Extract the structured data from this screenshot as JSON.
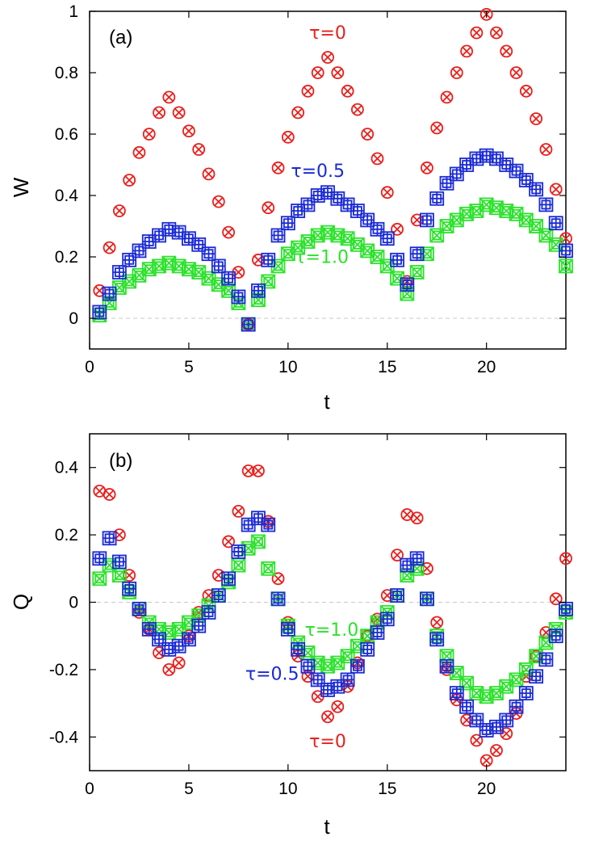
{
  "colors": {
    "tau0": "#e8201c",
    "tau05": "#1a2ad6",
    "tau10": "#2be22b",
    "zero_line": "#c8c8c8"
  },
  "chart_data": [
    {
      "type": "scatter",
      "panel_label": "(a)",
      "xlabel": "t",
      "ylabel": "W",
      "xlim": [
        0,
        24
      ],
      "ylim": [
        -0.1,
        1
      ],
      "xticks": [
        "0",
        "5",
        "10",
        "15",
        "20"
      ],
      "yticks": [
        "0",
        "0.2",
        "0.4",
        "0.6",
        "0.8",
        "1"
      ],
      "ytick_values": [
        0,
        0.2,
        0.4,
        0.6,
        0.8,
        1
      ],
      "annotations": [
        {
          "text": "τ=0",
          "series": "tau0",
          "x": 12,
          "y": 0.91
        },
        {
          "text": "τ=0.5",
          "series": "tau05",
          "x": 11.5,
          "y": 0.46
        },
        {
          "text": "τ=1.0",
          "series": "tau10",
          "x": 11.7,
          "y": 0.18
        }
      ],
      "grid": false,
      "series": [
        {
          "key": "tau0",
          "marker": "circle-x",
          "x": [
            0.5,
            1,
            1.5,
            2,
            2.5,
            3,
            3.5,
            4,
            4.5,
            5,
            5.5,
            6,
            6.5,
            7,
            7.5,
            8,
            8.5,
            9,
            9.5,
            10,
            10.5,
            11,
            11.5,
            12,
            12.5,
            13,
            13.5,
            14,
            14.5,
            15,
            15.5,
            16,
            16.5,
            17,
            17.5,
            18,
            18.5,
            19,
            19.5,
            20,
            20.5,
            21,
            21.5,
            22,
            22.5,
            23,
            23.5,
            24
          ],
          "y": [
            0.09,
            0.23,
            0.35,
            0.45,
            0.54,
            0.6,
            0.67,
            0.72,
            0.67,
            0.61,
            0.55,
            0.47,
            0.38,
            0.28,
            0.15,
            -0.02,
            0.19,
            0.36,
            0.49,
            0.59,
            0.67,
            0.74,
            0.8,
            0.85,
            0.8,
            0.74,
            0.68,
            0.6,
            0.52,
            0.41,
            0.29,
            0.12,
            0.32,
            0.49,
            0.62,
            0.72,
            0.8,
            0.87,
            0.93,
            0.99,
            0.93,
            0.87,
            0.8,
            0.74,
            0.65,
            0.55,
            0.42,
            0.26
          ]
        },
        {
          "key": "tau05",
          "marker": "square-plus",
          "x": [
            0.5,
            1,
            1.5,
            2,
            2.5,
            3,
            3.5,
            4,
            4.5,
            5,
            5.5,
            6,
            6.5,
            7,
            7.5,
            8,
            8.5,
            9,
            9.5,
            10,
            10.5,
            11,
            11.5,
            12,
            12.5,
            13,
            13.5,
            14,
            14.5,
            15,
            15.5,
            16,
            16.5,
            17,
            17.5,
            18,
            18.5,
            19,
            19.5,
            20,
            20.5,
            21,
            21.5,
            22,
            22.5,
            23,
            23.5,
            24
          ],
          "y": [
            0.02,
            0.08,
            0.15,
            0.19,
            0.22,
            0.25,
            0.27,
            0.29,
            0.28,
            0.26,
            0.24,
            0.21,
            0.17,
            0.13,
            0.07,
            -0.02,
            0.09,
            0.19,
            0.27,
            0.31,
            0.35,
            0.37,
            0.4,
            0.41,
            0.39,
            0.37,
            0.35,
            0.32,
            0.29,
            0.26,
            0.19,
            0.11,
            0.21,
            0.32,
            0.39,
            0.44,
            0.47,
            0.5,
            0.52,
            0.53,
            0.52,
            0.5,
            0.48,
            0.45,
            0.42,
            0.37,
            0.31,
            0.22
          ]
        },
        {
          "key": "tau10",
          "marker": "square-x",
          "x": [
            0.5,
            1,
            1.5,
            2,
            2.5,
            3,
            3.5,
            4,
            4.5,
            5,
            5.5,
            6,
            6.5,
            7,
            7.5,
            8,
            8.5,
            9,
            9.5,
            10,
            10.5,
            11,
            11.5,
            12,
            12.5,
            13,
            13.5,
            14,
            14.5,
            15,
            15.5,
            16,
            16.5,
            17,
            17.5,
            18,
            18.5,
            19,
            19.5,
            20,
            20.5,
            21,
            21.5,
            22,
            22.5,
            23,
            23.5,
            24
          ],
          "y": [
            0.01,
            0.05,
            0.1,
            0.12,
            0.14,
            0.16,
            0.17,
            0.18,
            0.17,
            0.16,
            0.15,
            0.13,
            0.11,
            0.09,
            0.05,
            -0.02,
            0.06,
            0.12,
            0.17,
            0.21,
            0.23,
            0.25,
            0.27,
            0.28,
            0.27,
            0.26,
            0.24,
            0.22,
            0.2,
            0.17,
            0.13,
            0.08,
            0.15,
            0.21,
            0.27,
            0.3,
            0.32,
            0.34,
            0.35,
            0.37,
            0.36,
            0.35,
            0.34,
            0.32,
            0.3,
            0.27,
            0.24,
            0.17
          ]
        }
      ]
    },
    {
      "type": "scatter",
      "panel_label": "(b)",
      "xlabel": "t",
      "ylabel": "Q",
      "xlim": [
        0,
        24
      ],
      "ylim": [
        -0.5,
        0.5
      ],
      "xticks": [
        "0",
        "5",
        "10",
        "15",
        "20"
      ],
      "yticks": [
        "-0.4",
        "-0.2",
        "0",
        "0.2",
        "0.4"
      ],
      "ytick_values": [
        -0.4,
        -0.2,
        0,
        0.2,
        0.4
      ],
      "annotations": [
        {
          "text": "τ=1.0",
          "series": "tau10",
          "x": 12.2,
          "y": -0.1
        },
        {
          "text": "τ=0.5",
          "series": "tau05",
          "x": 9.2,
          "y": -0.23
        },
        {
          "text": "τ=0",
          "series": "tau0",
          "x": 12,
          "y": -0.43
        }
      ],
      "grid": false,
      "series": [
        {
          "key": "tau0",
          "marker": "circle-x",
          "x": [
            0.5,
            1,
            1.5,
            2,
            2.5,
            3,
            3.5,
            4,
            4.5,
            5,
            5.5,
            6,
            6.5,
            7,
            7.5,
            8,
            8.5,
            9,
            9.5,
            10,
            10.5,
            11,
            11.5,
            12,
            12.5,
            13,
            13.5,
            14,
            14.5,
            15,
            15.5,
            16,
            16.5,
            17,
            17.5,
            18,
            18.5,
            19,
            19.5,
            20,
            20.5,
            21,
            21.5,
            22,
            22.5,
            23,
            23.5,
            24
          ],
          "y": [
            0.33,
            0.32,
            0.2,
            0.08,
            -0.03,
            -0.08,
            -0.15,
            -0.2,
            -0.18,
            -0.1,
            -0.03,
            0.02,
            0.08,
            0.18,
            0.27,
            0.39,
            0.39,
            0.24,
            0.07,
            -0.06,
            -0.16,
            -0.22,
            -0.28,
            -0.34,
            -0.31,
            -0.25,
            -0.18,
            -0.1,
            -0.05,
            0.02,
            0.14,
            0.26,
            0.25,
            0.1,
            -0.06,
            -0.2,
            -0.29,
            -0.35,
            -0.41,
            -0.47,
            -0.44,
            -0.39,
            -0.33,
            -0.22,
            -0.16,
            -0.09,
            0.01,
            0.13
          ]
        },
        {
          "key": "tau05",
          "marker": "square-plus",
          "x": [
            0.5,
            1,
            1.5,
            2,
            2.5,
            3,
            3.5,
            4,
            4.5,
            5,
            5.5,
            6,
            6.5,
            7,
            7.5,
            8,
            8.5,
            9,
            9.5,
            10,
            10.5,
            11,
            11.5,
            12,
            12.5,
            13,
            13.5,
            14,
            14.5,
            15,
            15.5,
            16,
            16.5,
            17,
            17.5,
            18,
            18.5,
            19,
            19.5,
            20,
            20.5,
            21,
            21.5,
            22,
            22.5,
            23,
            23.5,
            24
          ],
          "y": [
            0.13,
            0.19,
            0.12,
            0.04,
            -0.02,
            -0.08,
            -0.11,
            -0.14,
            -0.13,
            -0.11,
            -0.07,
            -0.03,
            0.02,
            0.07,
            0.15,
            0.23,
            0.25,
            0.23,
            0.01,
            -0.08,
            -0.14,
            -0.19,
            -0.23,
            -0.26,
            -0.25,
            -0.23,
            -0.19,
            -0.14,
            -0.09,
            -0.05,
            0.02,
            0.11,
            0.13,
            0.01,
            -0.11,
            -0.19,
            -0.27,
            -0.31,
            -0.35,
            -0.38,
            -0.37,
            -0.35,
            -0.31,
            -0.27,
            -0.22,
            -0.17,
            -0.1,
            -0.02
          ]
        },
        {
          "key": "tau10",
          "marker": "square-x",
          "x": [
            0.5,
            1,
            1.5,
            2,
            2.5,
            3,
            3.5,
            4,
            4.5,
            5,
            5.5,
            6,
            6.5,
            7,
            7.5,
            8,
            8.5,
            9,
            9.5,
            10,
            10.5,
            11,
            11.5,
            12,
            12.5,
            13,
            13.5,
            14,
            14.5,
            15,
            15.5,
            16,
            16.5,
            17,
            17.5,
            18,
            18.5,
            19,
            19.5,
            20,
            20.5,
            21,
            21.5,
            22,
            22.5,
            23,
            23.5,
            24
          ],
          "y": [
            0.07,
            0.11,
            0.08,
            0.03,
            -0.02,
            -0.06,
            -0.08,
            -0.09,
            -0.08,
            -0.06,
            -0.04,
            -0.01,
            0.02,
            0.06,
            0.11,
            0.16,
            0.18,
            0.1,
            0.01,
            -0.07,
            -0.12,
            -0.15,
            -0.18,
            -0.19,
            -0.18,
            -0.16,
            -0.13,
            -0.1,
            -0.06,
            -0.03,
            0.02,
            0.08,
            0.1,
            0.01,
            -0.1,
            -0.16,
            -0.21,
            -0.24,
            -0.27,
            -0.28,
            -0.27,
            -0.25,
            -0.23,
            -0.2,
            -0.16,
            -0.12,
            -0.08,
            -0.03
          ]
        }
      ]
    }
  ]
}
